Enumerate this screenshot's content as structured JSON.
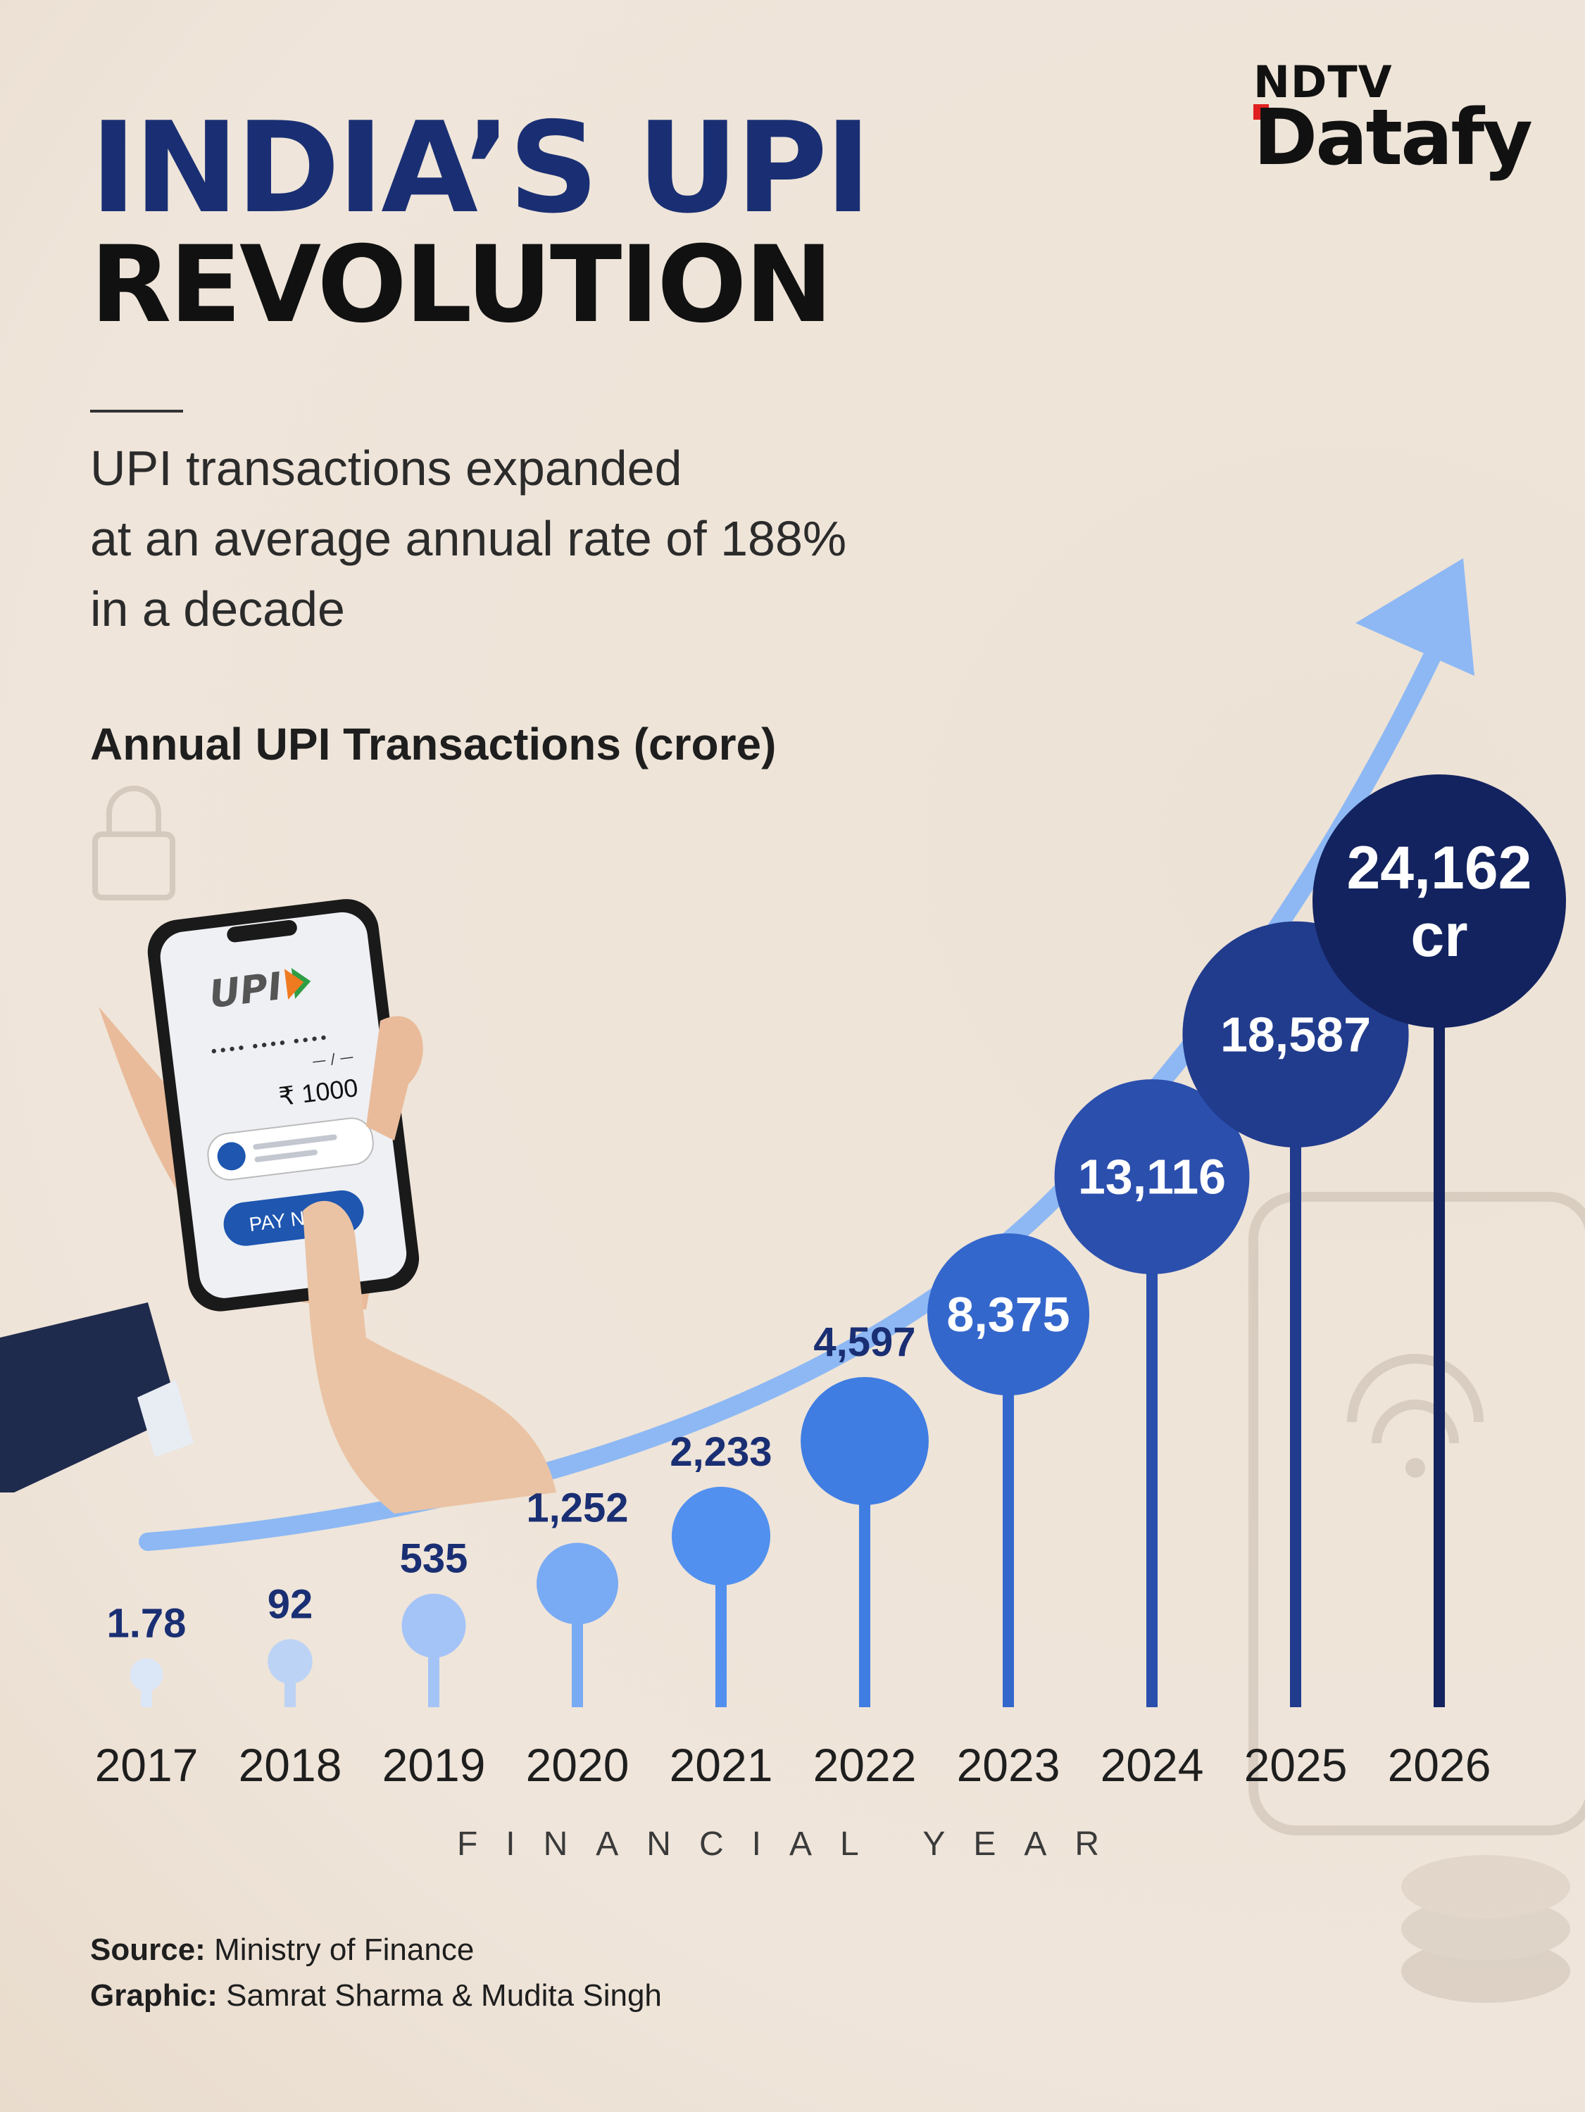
{
  "header": {
    "title_line1": "INDIA’S UPI",
    "title_line2": "REVOLUTION",
    "subtitle": "UPI transactions expanded\nat an average annual rate of 188%\nin a decade",
    "logo_top": "NDTV",
    "logo_bottom": "Datafy"
  },
  "phone": {
    "brand": "UPI",
    "pin_mask": "••••  ••••  ••••",
    "date_mask": "— / —",
    "amount": "₹ 1000",
    "pay_button": "PAY NOW"
  },
  "colors": {
    "title_blue": "#1a2f73",
    "arrow": "#8db8f4",
    "dark_navy": "#13235f"
  },
  "chart_data": {
    "type": "bar",
    "title": "Annual UPI Transactions (crore)",
    "xlabel": "FINANCIAL YEAR",
    "ylabel": "",
    "categories": [
      "2017",
      "2018",
      "2019",
      "2020",
      "2021",
      "2022",
      "2023",
      "2024",
      "2025",
      "2026"
    ],
    "values": [
      1.78,
      92,
      535,
      1252,
      2233,
      4597,
      8375,
      13116,
      18587,
      24162
    ],
    "labels": [
      "1.78",
      "92",
      "535",
      "1,252",
      "2,233",
      "4,597",
      "8,375",
      "13,116",
      "18,587",
      "24,162"
    ],
    "unit_suffix": "cr",
    "colors": [
      "#dbe6f7",
      "#bcd3f5",
      "#a4c4f7",
      "#79aaf4",
      "#5190ef",
      "#3f7de2",
      "#3467cc",
      "#2b4fad",
      "#213c8d",
      "#13235f"
    ]
  },
  "footer": {
    "source_label": "Source:",
    "source_value": "Ministry of Finance",
    "graphic_label": "Graphic:",
    "graphic_value": "Samrat Sharma & Mudita Singh"
  }
}
